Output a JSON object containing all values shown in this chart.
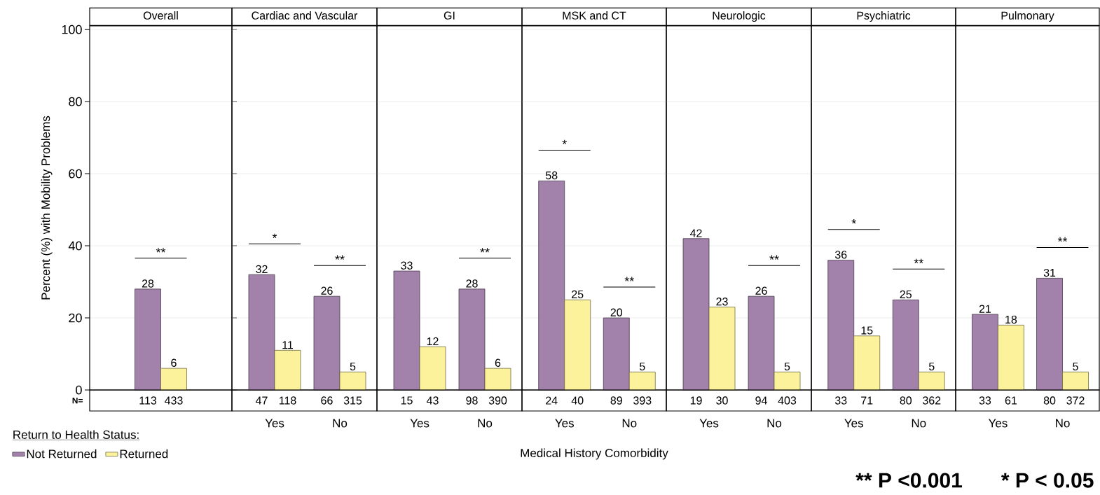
{
  "chart_data": [
    {
      "type": "bar",
      "title": "Overall",
      "categories": [
        null
      ],
      "series": [
        {
          "name": "Not Returned",
          "color": "#a281aa",
          "values": [
            28
          ]
        },
        {
          "name": "Returned",
          "color": "#fbf29b",
          "values": [
            6
          ]
        }
      ],
      "ylim": [
        0,
        101
      ],
      "yticks": [
        0,
        20,
        40,
        60,
        80,
        100
      ],
      "ylabel": "Percent (%) with Mobility Problems",
      "grid": "y",
      "tick_labels": "y",
      "data_labels": true,
      "legend": "bottom left",
      "legend_title": "Return to Health Status:",
      "annotations": [
        "N=",
        "113",
        "433",
        "**"
      ]
    },
    {
      "type": "bar",
      "title": "Cardiac and Vascular",
      "categories": [
        "Yes",
        "No"
      ],
      "series": [
        {
          "color": "#a281aa",
          "values": [
            32,
            26
          ]
        },
        {
          "color": "#fbf29b",
          "values": [
            11,
            5
          ]
        }
      ],
      "ylim": [
        0,
        101
      ],
      "yticks": [
        0,
        20,
        40,
        60,
        80,
        100
      ],
      "grid": "y",
      "tick_labels": "x",
      "data_labels": true,
      "annotations": [
        "47",
        "118",
        "66",
        "315",
        "*",
        "**"
      ]
    },
    {
      "type": "bar",
      "title": "GI",
      "categories": [
        "Yes",
        "No"
      ],
      "series": [
        {
          "color": "#a281aa",
          "values": [
            33,
            28
          ]
        },
        {
          "color": "#fbf29b",
          "values": [
            12,
            6
          ]
        }
      ],
      "ylim": [
        0,
        101
      ],
      "yticks": [
        0,
        20,
        40,
        60,
        80,
        100
      ],
      "grid": "y",
      "tick_labels": "x",
      "data_labels": true,
      "annotations": [
        "15",
        "43",
        "98",
        "390",
        "**"
      ]
    },
    {
      "type": "bar",
      "title": "MSK and CT",
      "categories": [
        "Yes",
        "No"
      ],
      "series": [
        {
          "color": "#a281aa",
          "values": [
            58,
            20
          ]
        },
        {
          "color": "#fbf29b",
          "values": [
            25,
            5
          ]
        }
      ],
      "ylim": [
        0,
        101
      ],
      "yticks": [
        0,
        20,
        40,
        60,
        80,
        100
      ],
      "grid": "y",
      "tick_labels": "x",
      "data_labels": true,
      "xlabel": "Medical History Comorbidity",
      "annotations": [
        "24",
        "40",
        "89",
        "393",
        "*",
        "**"
      ]
    },
    {
      "type": "bar",
      "title": "Neurologic",
      "categories": [
        "Yes",
        "No"
      ],
      "series": [
        {
          "color": "#a281aa",
          "values": [
            42,
            26
          ]
        },
        {
          "color": "#fbf29b",
          "values": [
            23,
            5
          ]
        }
      ],
      "ylim": [
        0,
        101
      ],
      "yticks": [
        0,
        20,
        40,
        60,
        80,
        100
      ],
      "grid": "y",
      "tick_labels": "x",
      "data_labels": true,
      "annotations": [
        "19",
        "30",
        "94",
        "403",
        "**"
      ]
    },
    {
      "type": "bar",
      "title": "Psychiatric",
      "categories": [
        "Yes",
        "No"
      ],
      "series": [
        {
          "color": "#a281aa",
          "values": [
            36,
            25
          ]
        },
        {
          "color": "#fbf29b",
          "values": [
            15,
            5
          ]
        }
      ],
      "ylim": [
        0,
        101
      ],
      "yticks": [
        0,
        20,
        40,
        60,
        80,
        100
      ],
      "grid": "y",
      "tick_labels": "x",
      "data_labels": true,
      "annotations": [
        "33",
        "71",
        "80",
        "362",
        "*",
        "**"
      ]
    },
    {
      "type": "bar",
      "title": "Pulmonary",
      "categories": [
        "Yes",
        "No"
      ],
      "series": [
        {
          "color": "#a281aa",
          "values": [
            21,
            31
          ]
        },
        {
          "color": "#fbf29b",
          "values": [
            18,
            5
          ]
        }
      ],
      "ylim": [
        0,
        101
      ],
      "yticks": [
        0,
        20,
        40,
        60,
        80,
        100
      ],
      "grid": "y",
      "tick_labels": "x",
      "data_labels": true,
      "annotations": [
        "33",
        "61",
        "80",
        "372",
        "**"
      ]
    },
    {
      "type": "other",
      "annotations": [
        "** P <0.001",
        "* P < 0.05"
      ]
    }
  ]
}
